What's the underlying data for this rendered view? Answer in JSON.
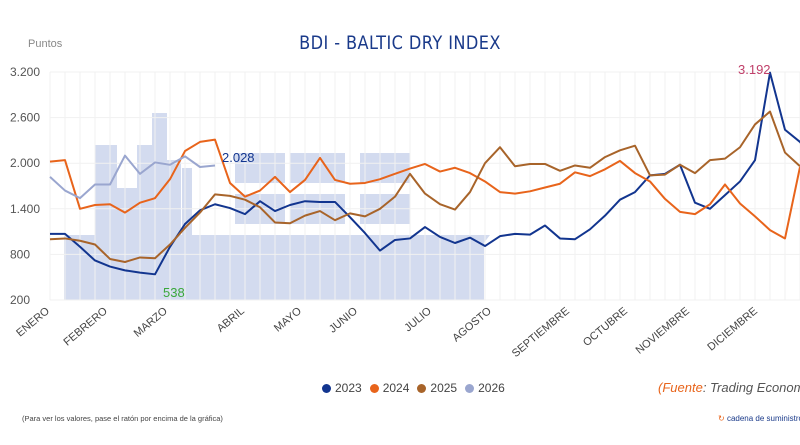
{
  "title": "BDI - BALTIC DRY INDEX",
  "note": "(Para ver los valores, pase el ratón por encima de la gráfica)",
  "source": {
    "prefix": "(",
    "label": "Fuente",
    "text": ": Trading Economic"
  },
  "brand": {
    "icon": "cadena-logo-icon",
    "text": "cadena de suministro"
  },
  "chart_data": {
    "type": "line",
    "title": "BDI - BALTIC DRY INDEX",
    "ylabel": "Puntos",
    "xlabel": "",
    "ylim": [
      200,
      3200
    ],
    "yticks": [
      "3.200",
      "2.600",
      "2.000",
      "1.400",
      "800",
      "200"
    ],
    "ytick_values": [
      3200,
      2600,
      2000,
      1400,
      800,
      200
    ],
    "months": [
      "ENERO",
      "FEBRERO",
      "MARZO",
      "ABRIL",
      "MAYO",
      "JUNIO",
      "JULIO",
      "AGOSTO",
      "SEPTIEMBRE",
      "OCTUBRE",
      "NOVIEMBRE",
      "DICIEMBRE"
    ],
    "grid": true,
    "legend_position": "bottom",
    "series": [
      {
        "name": "2023",
        "color": "#12358f",
        "values": [
          1070,
          1070,
          900,
          720,
          640,
          590,
          560,
          538,
          900,
          1200,
          1380,
          1460,
          1410,
          1330,
          1500,
          1370,
          1450,
          1500,
          1490,
          1490,
          1290,
          1080,
          850,
          990,
          1010,
          1160,
          1030,
          950,
          1020,
          910,
          1040,
          1070,
          1060,
          1180,
          1010,
          1000,
          1130,
          1310,
          1520,
          1620,
          1840,
          1860,
          1980,
          1480,
          1400,
          1580,
          1760,
          2040,
          3192,
          2440,
          2280,
          2020
        ]
      },
      {
        "name": "2024",
        "color": "#e8641b",
        "values": [
          2020,
          2040,
          1400,
          1450,
          1460,
          1350,
          1480,
          1540,
          1790,
          2160,
          2280,
          2310,
          1740,
          1560,
          1640,
          1820,
          1620,
          1780,
          2070,
          1780,
          1730,
          1740,
          1790,
          1860,
          1930,
          1990,
          1890,
          1940,
          1870,
          1760,
          1620,
          1600,
          1630,
          1680,
          1730,
          1880,
          1830,
          1920,
          2030,
          1870,
          1760,
          1530,
          1360,
          1330,
          1460,
          1720,
          1470,
          1300,
          1120,
          1010,
          1950
        ]
      },
      {
        "name": "2025",
        "color": "#a8642a",
        "values": [
          1000,
          1010,
          980,
          930,
          740,
          700,
          760,
          750,
          930,
          1150,
          1350,
          1590,
          1570,
          1520,
          1420,
          1220,
          1210,
          1310,
          1370,
          1250,
          1340,
          1300,
          1400,
          1560,
          1860,
          1600,
          1460,
          1390,
          1620,
          2000,
          2210,
          1960,
          1990,
          1990,
          1900,
          1970,
          1940,
          2080,
          2170,
          2230,
          1840,
          1850,
          1980,
          1870,
          2040,
          2060,
          2210,
          2510,
          2680,
          2140,
          1960
        ]
      },
      {
        "name": "2026",
        "color": "#9aa6cf",
        "values": [
          1820,
          1640,
          1540,
          1720,
          1720,
          2100,
          1860,
          2010,
          1980,
          2090,
          1950,
          1970
        ]
      }
    ],
    "annotations": [
      {
        "text": "538",
        "series": "2023",
        "color": "#3aa83a"
      },
      {
        "text": "2.028",
        "series": "2026",
        "color": "#12358f"
      },
      {
        "text": "3.192",
        "series": "2023",
        "color": "#c0406a"
      }
    ]
  }
}
